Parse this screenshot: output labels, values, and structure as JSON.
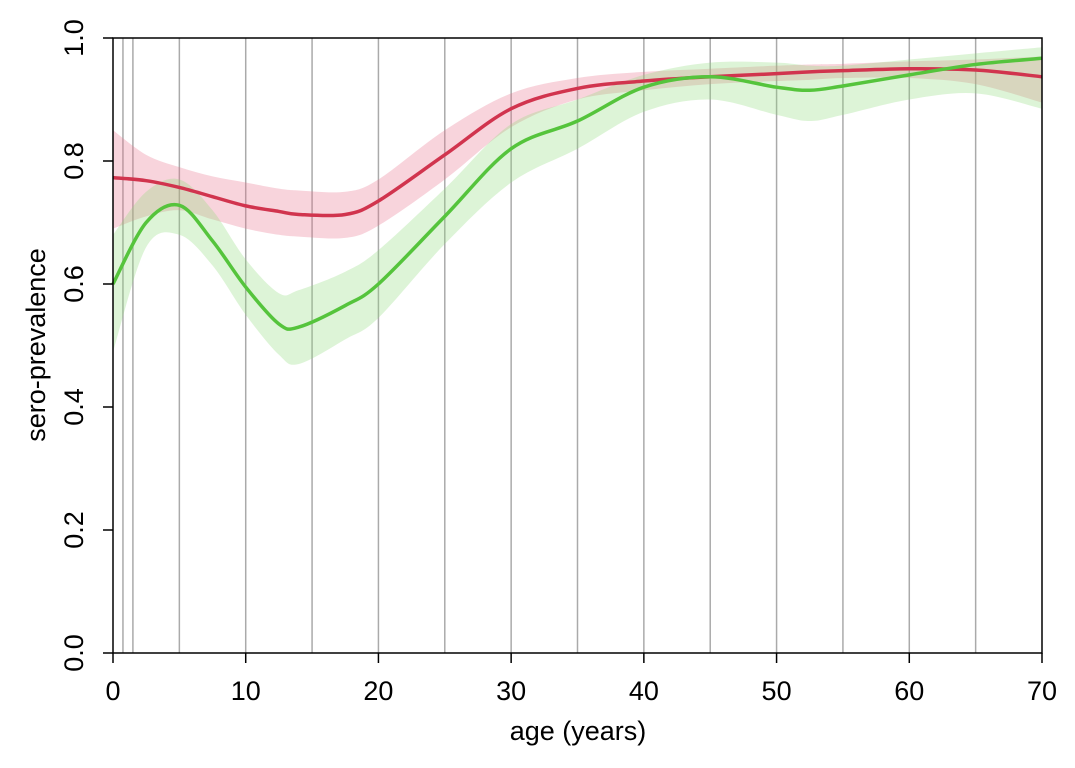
{
  "chart_data": {
    "type": "line",
    "x_label": "age (years)",
    "y_label": "sero-prevalence",
    "x": [
      0,
      2.5,
      5,
      7.5,
      10,
      12.5,
      14,
      17.5,
      20,
      25,
      30,
      35,
      40,
      45,
      50,
      52.5,
      55,
      60,
      65,
      70
    ],
    "series": [
      {
        "color": "#d1344e",
        "band_color": "#e8728a",
        "values": [
          0.773,
          0.768,
          0.757,
          0.742,
          0.727,
          0.718,
          0.713,
          0.713,
          0.735,
          0.81,
          0.885,
          0.918,
          0.93,
          0.937,
          0.942,
          0.945,
          0.947,
          0.95,
          0.948,
          0.937
        ],
        "lower": [
          0.69,
          0.71,
          0.72,
          0.705,
          0.69,
          0.68,
          0.677,
          0.675,
          0.695,
          0.77,
          0.855,
          0.9,
          0.915,
          0.925,
          0.93,
          0.932,
          0.935,
          0.935,
          0.925,
          0.895
        ],
        "upper": [
          0.85,
          0.81,
          0.79,
          0.775,
          0.765,
          0.755,
          0.752,
          0.75,
          0.77,
          0.85,
          0.91,
          0.935,
          0.945,
          0.95,
          0.955,
          0.957,
          0.958,
          0.962,
          0.965,
          0.97
        ]
      },
      {
        "color": "#55c43c",
        "band_color": "#8fd97c",
        "values": [
          0.6,
          0.7,
          0.728,
          0.67,
          0.595,
          0.535,
          0.53,
          0.565,
          0.6,
          0.71,
          0.82,
          0.865,
          0.92,
          0.937,
          0.92,
          0.915,
          0.922,
          0.94,
          0.957,
          0.967
        ],
        "lower": [
          0.49,
          0.66,
          0.68,
          0.63,
          0.55,
          0.485,
          0.47,
          0.51,
          0.545,
          0.665,
          0.765,
          0.82,
          0.88,
          0.9,
          0.875,
          0.865,
          0.875,
          0.9,
          0.91,
          0.885
        ],
        "upper": [
          0.68,
          0.75,
          0.77,
          0.72,
          0.64,
          0.585,
          0.59,
          0.62,
          0.655,
          0.755,
          0.86,
          0.9,
          0.94,
          0.96,
          0.96,
          0.955,
          0.955,
          0.965,
          0.975,
          0.985
        ]
      }
    ],
    "vlines": [
      0.75,
      1.5,
      5,
      10,
      15,
      20,
      25,
      30,
      35,
      40,
      45,
      50,
      55,
      60,
      65
    ],
    "vline_color": "#aaaaaa",
    "xlim": [
      0,
      70
    ],
    "xticks": [
      0,
      10,
      20,
      30,
      40,
      50,
      60,
      70
    ],
    "ylim": [
      0,
      1
    ],
    "yticks": [
      {
        "value": 0,
        "label": "0.0"
      },
      0.2,
      0.4,
      0.6,
      0.8,
      {
        "value": 1,
        "label": "1.0"
      }
    ]
  }
}
